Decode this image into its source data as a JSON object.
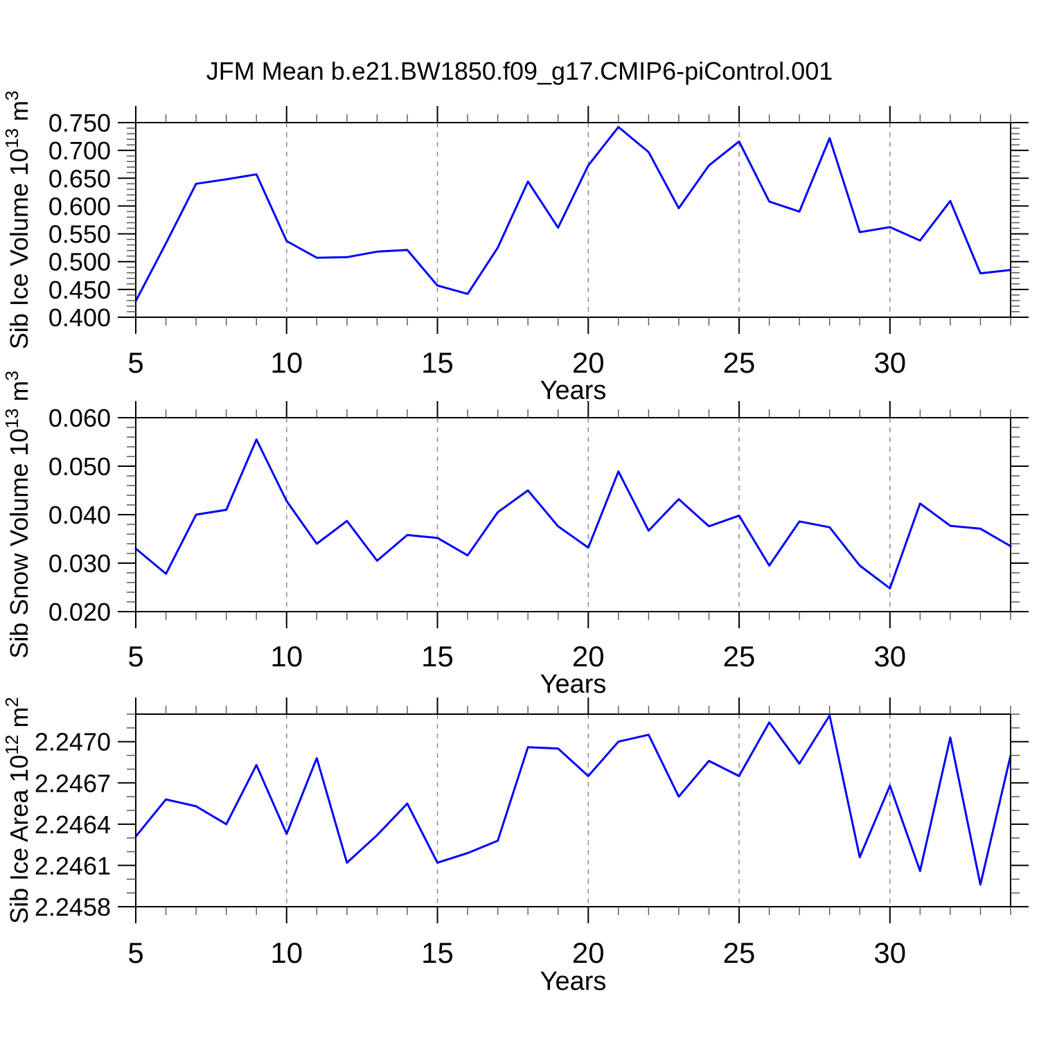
{
  "title": "JFM Mean b.e21.BW1850.f09_g17.CMIP6-piControl.001",
  "style": {
    "line_color": "#0000FF",
    "grid_color": "#8C8C8C",
    "frame_color": "#000000",
    "minor_tick_color": "#555555",
    "background": "#FFFFFF"
  },
  "chart_data": [
    {
      "type": "line",
      "xlabel": "Years",
      "ylabel_parts": [
        {
          "t": "Sib Ice Volume 10"
        },
        {
          "t": "13",
          "sup": true
        },
        {
          "t": " m"
        },
        {
          "t": "3",
          "sup": true
        }
      ],
      "xlim": [
        5,
        34
      ],
      "ylim": [
        0.4,
        0.75
      ],
      "xtick_values": [
        5,
        10,
        15,
        20,
        25,
        30
      ],
      "xtick_labels": [
        "5",
        "10",
        "15",
        "20",
        "25",
        "30"
      ],
      "ytick_values": [
        0.75,
        0.7,
        0.65,
        0.6,
        0.55,
        0.5,
        0.45,
        0.4
      ],
      "ytick_labels": [
        "0.750",
        "0.700",
        "0.650",
        "0.600",
        "0.550",
        "0.500",
        "0.450",
        "0.400"
      ],
      "y_minor_step": 0.01,
      "grid_x": [
        10,
        15,
        20,
        25,
        30
      ],
      "line_color": "#0000FF",
      "x": [
        5,
        6,
        7,
        8,
        9,
        10,
        11,
        12,
        13,
        14,
        15,
        16,
        17,
        18,
        19,
        20,
        21,
        22,
        23,
        24,
        25,
        26,
        27,
        28,
        29,
        30,
        31,
        32,
        33,
        34
      ],
      "values": [
        0.429,
        0.533,
        0.64,
        0.648,
        0.657,
        0.537,
        0.507,
        0.508,
        0.518,
        0.521,
        0.457,
        0.442,
        0.525,
        0.644,
        0.561,
        0.673,
        0.742,
        0.697,
        0.596,
        0.673,
        0.716,
        0.608,
        0.59,
        0.722,
        0.553,
        0.562,
        0.538,
        0.609,
        0.479,
        0.485
      ]
    },
    {
      "type": "line",
      "xlabel": "Years",
      "ylabel_parts": [
        {
          "t": "Sib Snow Volume 10"
        },
        {
          "t": "13",
          "sup": true
        },
        {
          "t": " m"
        },
        {
          "t": "3",
          "sup": true
        }
      ],
      "xlim": [
        5,
        34
      ],
      "ylim": [
        0.02,
        0.06
      ],
      "xtick_values": [
        5,
        10,
        15,
        20,
        25,
        30
      ],
      "xtick_labels": [
        "5",
        "10",
        "15",
        "20",
        "25",
        "30"
      ],
      "ytick_values": [
        0.06,
        0.05,
        0.04,
        0.03,
        0.02
      ],
      "ytick_labels": [
        "0.060",
        "0.050",
        "0.040",
        "0.030",
        "0.020"
      ],
      "y_minor_step": 0.002,
      "grid_x": [
        10,
        15,
        20,
        25,
        30
      ],
      "line_color": "#0000FF",
      "x": [
        5,
        6,
        7,
        8,
        9,
        10,
        11,
        12,
        13,
        14,
        15,
        16,
        17,
        18,
        19,
        20,
        21,
        22,
        23,
        24,
        25,
        26,
        27,
        28,
        29,
        30,
        31,
        32,
        33,
        34
      ],
      "values": [
        0.033,
        0.0278,
        0.04,
        0.041,
        0.0555,
        0.0428,
        0.034,
        0.0387,
        0.0305,
        0.0358,
        0.0352,
        0.0316,
        0.0405,
        0.045,
        0.0376,
        0.0332,
        0.0489,
        0.0367,
        0.0432,
        0.0376,
        0.0398,
        0.0295,
        0.0386,
        0.0374,
        0.0295,
        0.0248,
        0.0423,
        0.0377,
        0.0371,
        0.0335
      ]
    },
    {
      "type": "line",
      "xlabel": "Years",
      "ylabel_parts": [
        {
          "t": "Sib Ice Area 10"
        },
        {
          "t": "12",
          "sup": true
        },
        {
          "t": " m"
        },
        {
          "t": "2",
          "sup": true
        }
      ],
      "xlim": [
        5,
        34
      ],
      "ylim": [
        2.2458,
        2.2472
      ],
      "xtick_values": [
        5,
        10,
        15,
        20,
        25,
        30
      ],
      "xtick_labels": [
        "5",
        "10",
        "15",
        "20",
        "25",
        "30"
      ],
      "ytick_values": [
        2.247,
        2.2467,
        2.2464,
        2.2461,
        2.2458
      ],
      "ytick_labels": [
        "2.2470",
        "2.2467",
        "2.2464",
        "2.2461",
        "2.2458"
      ],
      "y_minor_step": 0.0001,
      "grid_x": [
        10,
        15,
        20,
        25,
        30
      ],
      "line_color": "#0000FF",
      "x": [
        5,
        6,
        7,
        8,
        9,
        10,
        11,
        12,
        13,
        14,
        15,
        16,
        17,
        18,
        19,
        20,
        21,
        22,
        23,
        24,
        25,
        26,
        27,
        28,
        29,
        30,
        31,
        32,
        33,
        34
      ],
      "values": [
        2.24631,
        2.24658,
        2.24653,
        2.2464,
        2.24683,
        2.24633,
        2.24688,
        2.24612,
        2.24632,
        2.24655,
        2.24612,
        2.24619,
        2.24628,
        2.24696,
        2.24695,
        2.24675,
        2.247,
        2.24705,
        2.2466,
        2.24686,
        2.24675,
        2.24714,
        2.24684,
        2.24719,
        2.24616,
        2.24668,
        2.24606,
        2.24703,
        2.24596,
        2.2469
      ]
    }
  ]
}
